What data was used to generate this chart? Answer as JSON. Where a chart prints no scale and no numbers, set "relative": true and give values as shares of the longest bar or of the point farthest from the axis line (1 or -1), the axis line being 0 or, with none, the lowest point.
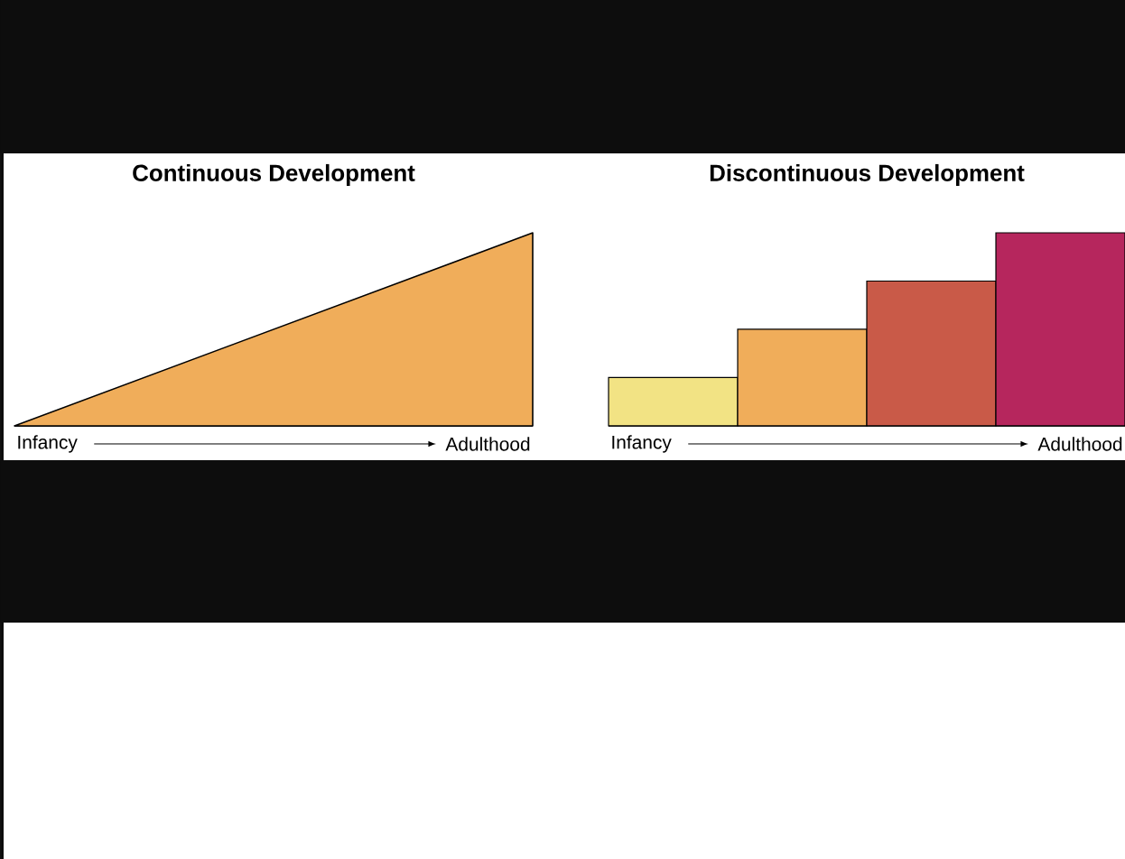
{
  "chart_data": [
    {
      "type": "area",
      "title": "Continuous Development",
      "relative": true,
      "categories": [
        null,
        null
      ],
      "values": [
        0,
        1
      ],
      "color": "#f0ad5a",
      "annotations": [
        "Infancy",
        "Adulthood"
      ]
    },
    {
      "type": "bar",
      "title": "Discontinuous Development",
      "relative": true,
      "categories": [
        null,
        null,
        null,
        null
      ],
      "values": [
        0.25,
        0.5,
        0.75,
        1
      ],
      "colors": [
        "#f2e384",
        "#f0ad5a",
        "#c95a48",
        "#b6265d"
      ],
      "annotations": [
        "Infancy",
        "Adulthood"
      ]
    }
  ]
}
